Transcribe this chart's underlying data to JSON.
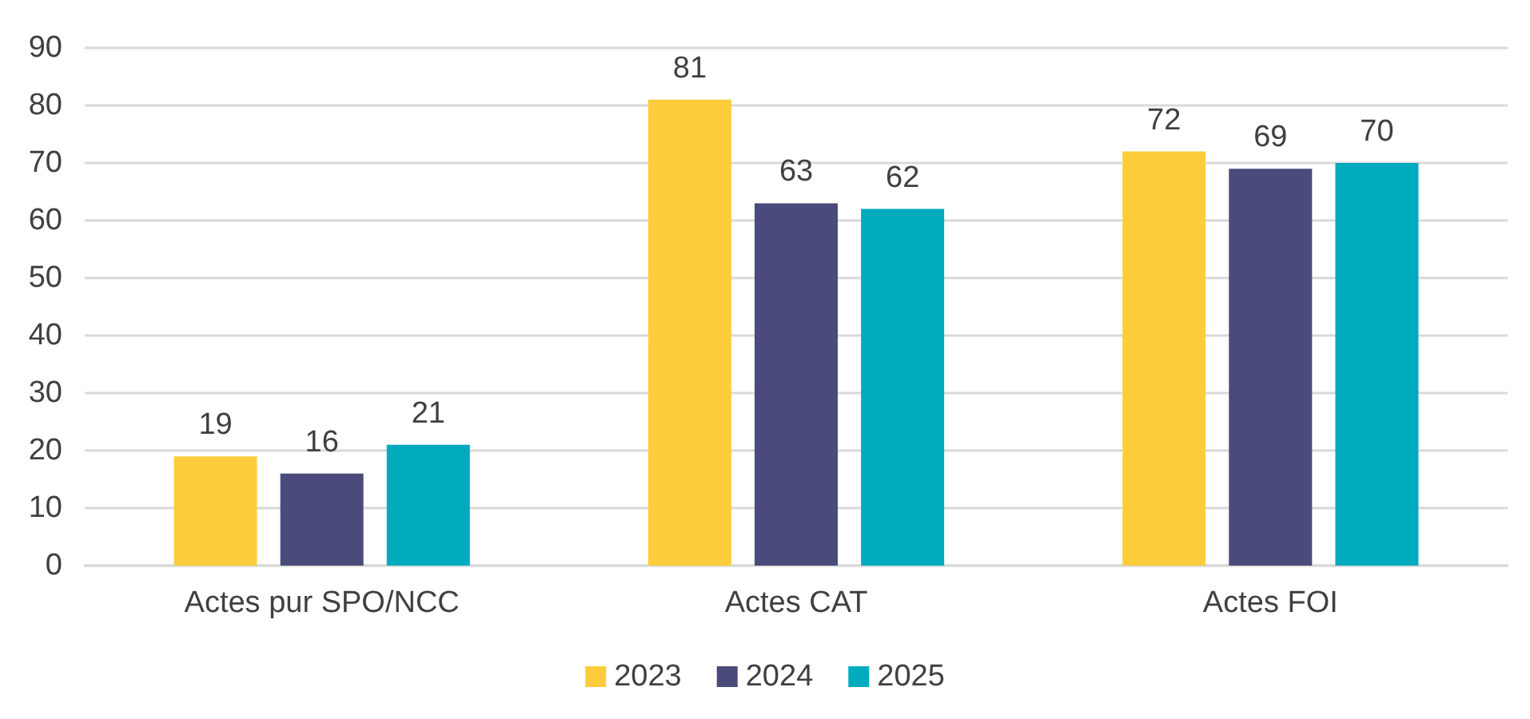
{
  "chart_data": {
    "type": "bar",
    "categories": [
      "Actes pur SPO/NCC",
      "Actes CAT",
      "Actes FOI"
    ],
    "series": [
      {
        "name": "2023",
        "color": "#ffcd3c",
        "values": [
          19,
          81,
          72
        ]
      },
      {
        "name": "2024",
        "color": "#4a4b7a",
        "values": [
          16,
          63,
          69
        ]
      },
      {
        "name": "2025",
        "color": "#00abbd",
        "values": [
          21,
          62,
          70
        ]
      }
    ],
    "ylim": [
      0,
      90
    ],
    "yticks": [
      0,
      10,
      20,
      30,
      40,
      50,
      60,
      70,
      80,
      90
    ],
    "grid": "y",
    "legend": "bottom",
    "data_labels": true
  }
}
